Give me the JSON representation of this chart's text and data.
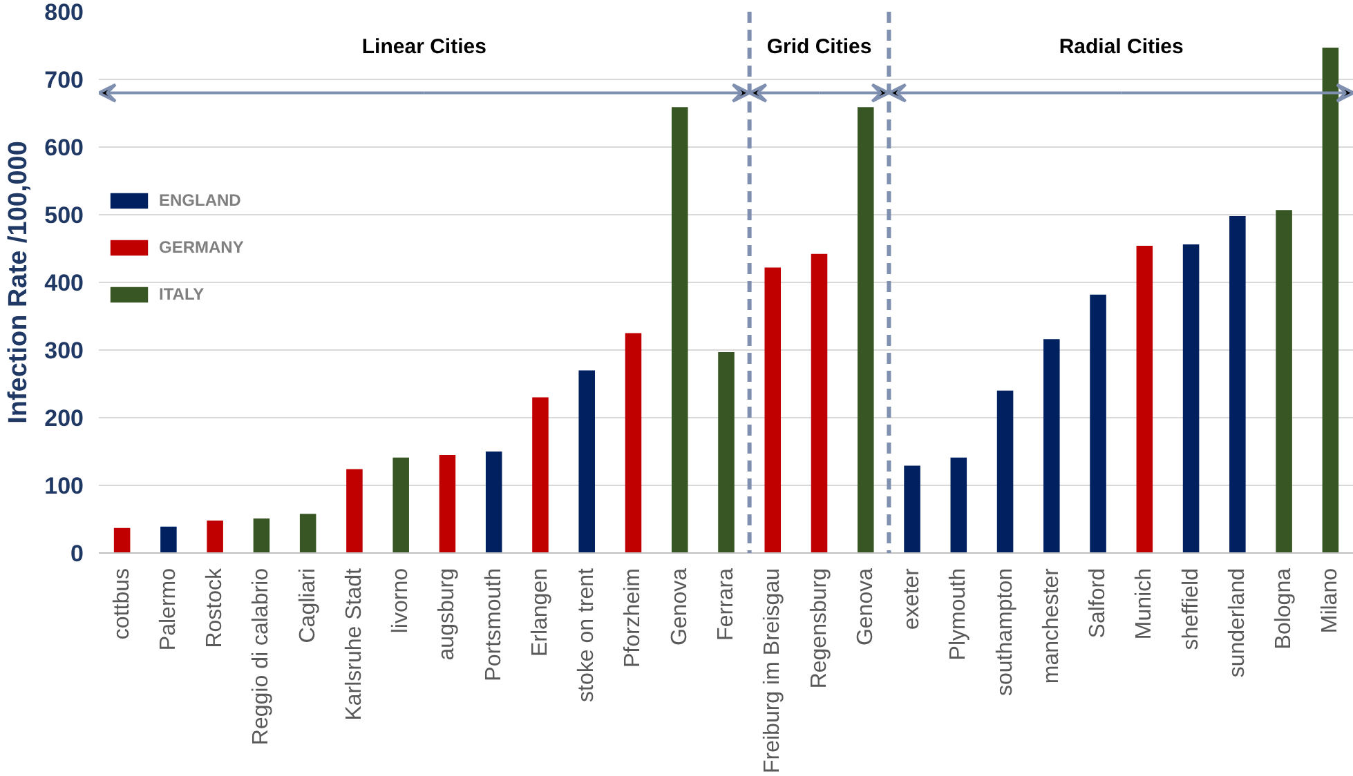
{
  "chart_data": {
    "type": "bar",
    "ylabel": "Infection Rate /100,000",
    "categories": [
      "cottbus",
      "Palermo",
      "Rostock",
      "Reggio di calabrio",
      "Cagliari",
      "Karlsruhe Stadt",
      "livorno",
      "augsburg",
      "Portsmouth",
      "Erlangen",
      "stoke on trent",
      "Pforzheim",
      "Genova",
      "Ferrara",
      "Freiburg im Breisgau",
      "Regensburg",
      "Genova",
      "exeter",
      "Plymouth",
      "southampton",
      "manchester",
      "Salford",
      "Munich",
      "sheffield",
      "sunderland",
      "Bologna",
      "Milano"
    ],
    "series": [
      {
        "name": "ENGLAND",
        "color": "#002060",
        "values": [
          null,
          39,
          null,
          null,
          null,
          null,
          null,
          null,
          150,
          null,
          270,
          null,
          null,
          null,
          null,
          null,
          null,
          129,
          141,
          240,
          316,
          382,
          null,
          456,
          498,
          null,
          null
        ]
      },
      {
        "name": "GERMANY",
        "color": "#c00000",
        "values": [
          37,
          null,
          48,
          null,
          null,
          124,
          null,
          145,
          null,
          230,
          null,
          325,
          null,
          null,
          422,
          442,
          null,
          null,
          null,
          null,
          null,
          null,
          454,
          null,
          null,
          null,
          null
        ]
      },
      {
        "name": "ITALY",
        "color": "#375623",
        "values": [
          null,
          null,
          null,
          51,
          58,
          null,
          141,
          null,
          null,
          null,
          null,
          null,
          659,
          297,
          null,
          null,
          659,
          null,
          null,
          null,
          null,
          null,
          null,
          null,
          null,
          507,
          747
        ]
      }
    ],
    "ylim": [
      0,
      800
    ],
    "yticks": [
      0,
      100,
      200,
      300,
      400,
      500,
      600,
      700,
      800
    ],
    "grid": "y",
    "legend": "top left",
    "annotations": [
      "Linear Cities",
      "Grid Cities",
      "Radial Cities"
    ]
  }
}
